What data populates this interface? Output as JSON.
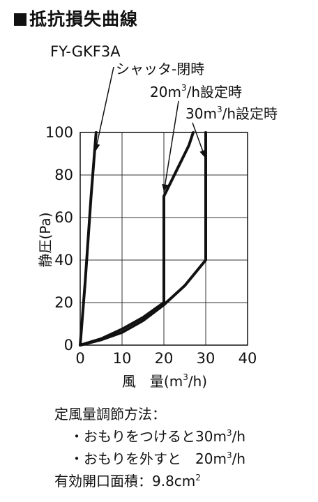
{
  "title": "抵抗損失曲線",
  "model": "FY-GKF3A",
  "chart_data": {
    "type": "line",
    "xlabel_main": "風　量",
    "xlabel_unit_pre": "(m",
    "xlabel_unit_sup": "3",
    "xlabel_unit_post": "/h)",
    "ylabel": "静圧(Pa)",
    "xlim": [
      0,
      40
    ],
    "ylim": [
      0,
      100
    ],
    "xticks": [
      0,
      10,
      20,
      30,
      40
    ],
    "yticks": [
      0,
      20,
      40,
      60,
      80,
      100
    ],
    "grid": true,
    "series": [
      {
        "name": "シャッタ-閉時",
        "x": [
          0,
          1.2,
          2.6,
          3.8
        ],
        "y": [
          0,
          30,
          70,
          100
        ]
      },
      {
        "name_pre": "20m",
        "name_sup": "3",
        "name_post": "/h設定時",
        "x": [
          0,
          5,
          10,
          15,
          20,
          20,
          22,
          24,
          26,
          27
        ],
        "y": [
          0,
          3,
          7.5,
          13,
          20,
          70,
          78,
          86,
          94,
          100
        ]
      },
      {
        "name_pre": "30m",
        "name_sup": "3",
        "name_post": "/h設定時",
        "x": [
          0,
          5,
          10,
          15,
          20,
          25,
          30,
          30
        ],
        "y": [
          0,
          2.5,
          6,
          11.5,
          19,
          28,
          40,
          100
        ]
      }
    ]
  },
  "notes": {
    "line1": "定風量調節方法：",
    "line2_pre": "・おもりをつけると30m",
    "line2_sup": "3",
    "line2_post": "/h",
    "line3_pre": "・おもりを外すと　20m",
    "line3_sup": "3",
    "line3_post": "/h",
    "line4_pre": "有効開口面積：9.8cm",
    "line4_sup": "2"
  }
}
